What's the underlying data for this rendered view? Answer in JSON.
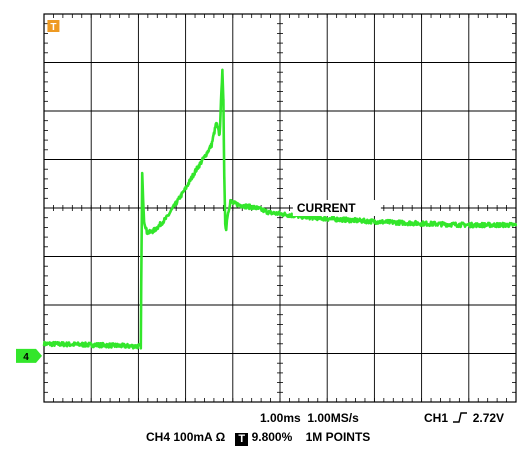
{
  "chart_data": {
    "type": "line",
    "divisions": {
      "x": 10,
      "y": 8
    },
    "xlim": [
      0,
      10
    ],
    "ylim": [
      -4,
      4
    ],
    "grid": true,
    "series": [
      {
        "name": "",
        "color": "#33e62b",
        "x": [
          0,
          1.0,
          1.9,
          2.05,
          2.08,
          2.12,
          2.18,
          2.25,
          2.35,
          2.45,
          2.6,
          2.8,
          3.0,
          3.2,
          3.4,
          3.55,
          3.65,
          3.72,
          3.78,
          3.8,
          3.82,
          3.84,
          3.86,
          3.88,
          3.95,
          4.0,
          4.2,
          4.5,
          4.8,
          5.0,
          5.5,
          6.0,
          7.0,
          8.0,
          9.0,
          10.0
        ],
        "y": [
          -2.8,
          -2.82,
          -2.85,
          -2.85,
          0.7,
          -0.25,
          -0.5,
          -0.5,
          -0.45,
          -0.35,
          -0.2,
          0.1,
          0.4,
          0.75,
          1.05,
          1.3,
          1.75,
          1.5,
          2.85,
          2.2,
          0.6,
          -0.3,
          -0.45,
          -0.2,
          0.15,
          0.1,
          0.05,
          0.0,
          -0.1,
          -0.12,
          -0.18,
          -0.22,
          -0.28,
          -0.32,
          -0.35,
          -0.35
        ]
      }
    ],
    "annotations": [
      {
        "text": "CURRENT",
        "x": 5.4,
        "y": 0.0
      }
    ]
  },
  "markers": {
    "trigger": {
      "label": "T",
      "color": "#ee9a22",
      "x": 0.2
    },
    "channel": {
      "label": "4",
      "color": "#33e62b",
      "y": -3.05
    }
  },
  "info": {
    "timebase": "1.00ms",
    "sample_rate": "1.00MS/s",
    "trigger_channel": "CH1",
    "trigger_slope_icon": "rising-edge-icon",
    "trigger_level": "2.72V",
    "channel_scale": "CH4  100mA Ω",
    "trigger_icon_label": "T",
    "trigger_position": "9.800%",
    "record_length": "1M POINTS"
  }
}
